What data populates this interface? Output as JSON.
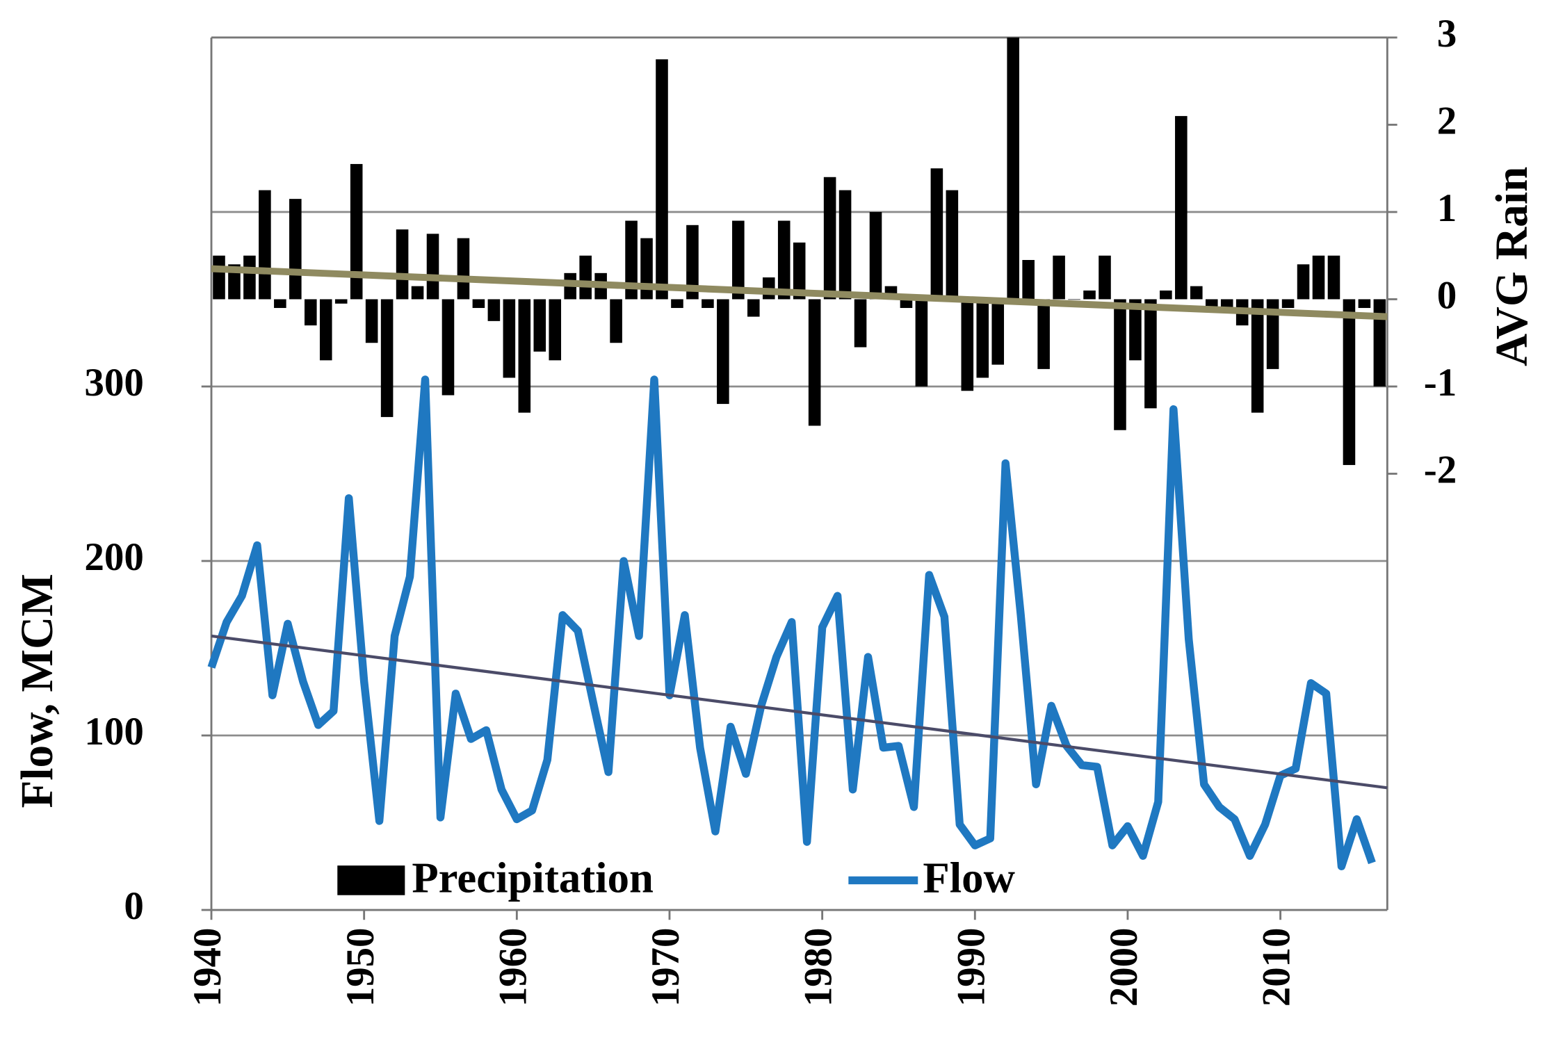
{
  "chart_data": {
    "type": "bar-line",
    "y_label": "Flow, MCM",
    "y2_label": "AVG Rain",
    "x": [
      1940,
      1941,
      1942,
      1943,
      1944,
      1945,
      1946,
      1947,
      1948,
      1949,
      1950,
      1951,
      1952,
      1953,
      1954,
      1955,
      1956,
      1957,
      1958,
      1959,
      1960,
      1961,
      1962,
      1963,
      1964,
      1965,
      1966,
      1967,
      1968,
      1969,
      1970,
      1971,
      1972,
      1973,
      1974,
      1975,
      1976,
      1977,
      1978,
      1979,
      1980,
      1981,
      1982,
      1983,
      1984,
      1985,
      1986,
      1987,
      1988,
      1989,
      1990,
      1991,
      1992,
      1993,
      1994,
      1995,
      1996,
      1997,
      1998,
      1999,
      2000,
      2001,
      2002,
      2003,
      2004,
      2005,
      2006,
      2007,
      2008,
      2009,
      2010,
      2011,
      2012,
      2013,
      2014,
      2015,
      2016
    ],
    "xlim": [
      1940,
      2017
    ],
    "xticks": [
      1940,
      1950,
      1960,
      1970,
      1980,
      1990,
      2000,
      2010
    ],
    "ylim": [
      0,
      500
    ],
    "yticks": [
      0,
      100,
      200,
      300
    ],
    "ygrid": [
      100,
      200,
      300,
      400
    ],
    "y2lim": [
      -7,
      3
    ],
    "y2ticks": [
      3,
      2,
      1,
      0,
      -1,
      -2
    ],
    "series": [
      {
        "name": "Precipitation",
        "kind": "bar",
        "axis": "y2",
        "color": "#000000",
        "trend": [
          0.35,
          -0.2
        ],
        "trend_color": "#8f8a60",
        "values": [
          0.5,
          0.4,
          0.5,
          1.25,
          -0.1,
          1.15,
          -0.3,
          -0.7,
          -0.05,
          1.55,
          -0.5,
          -1.35,
          0.8,
          0.15,
          0.75,
          -1.1,
          0.7,
          -0.1,
          -0.25,
          -0.9,
          -1.3,
          -0.6,
          -0.7,
          0.3,
          0.5,
          0.3,
          -0.5,
          0.9,
          0.7,
          2.75,
          -0.1,
          0.85,
          -0.1,
          -1.2,
          0.9,
          -0.2,
          0.25,
          0.9,
          0.65,
          -1.45,
          1.4,
          1.25,
          -0.55,
          1.0,
          0.15,
          -0.1,
          -1.0,
          1.5,
          1.25,
          -1.05,
          -0.9,
          -0.75,
          3.0,
          0.45,
          -0.8,
          0.5,
          0,
          0.1,
          0.5,
          -1.5,
          -0.7,
          -1.25,
          0.1,
          2.1,
          0.15,
          -0.1,
          -0.1,
          -0.3,
          -1.3,
          -0.8,
          -0.1,
          0.4,
          0.5,
          0.5,
          -1.9,
          -0.1,
          -1.0
        ]
      },
      {
        "name": "Flow",
        "kind": "line",
        "color": "#1f78c1",
        "trend": [
          157,
          70
        ],
        "trend_color": "#4b4b68",
        "values": [
          139,
          165,
          180,
          209,
          123,
          164,
          131,
          106,
          114,
          236,
          131,
          51,
          157,
          191,
          304,
          53,
          124,
          98,
          103,
          69,
          52,
          57,
          86,
          169,
          160,
          119,
          79,
          200,
          157,
          304,
          123,
          169,
          93,
          45,
          105,
          78,
          117,
          145,
          165,
          39,
          162,
          180,
          69,
          145,
          93,
          94,
          59,
          192,
          168,
          49,
          37,
          41,
          256,
          169,
          72,
          117,
          94,
          83,
          82,
          37,
          48,
          31,
          62,
          287,
          155,
          72,
          59,
          52,
          31,
          49,
          77,
          81,
          130,
          124,
          25,
          52,
          27
        ]
      }
    ]
  }
}
